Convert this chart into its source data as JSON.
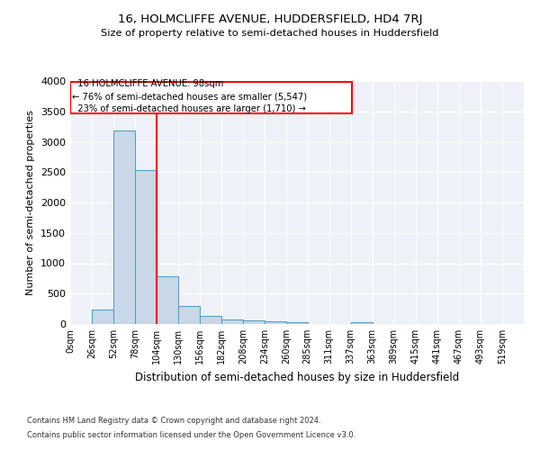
{
  "title": "16, HOLMCLIFFE AVENUE, HUDDERSFIELD, HD4 7RJ",
  "subtitle": "Size of property relative to semi-detached houses in Huddersfield",
  "xlabel": "Distribution of semi-detached houses by size in Huddersfield",
  "ylabel": "Number of semi-detached properties",
  "footer1": "Contains HM Land Registry data © Crown copyright and database right 2024.",
  "footer2": "Contains public sector information licensed under the Open Government Licence v3.0.",
  "property_label": "16 HOLMCLIFFE AVENUE: 98sqm",
  "pct_smaller": 76,
  "n_smaller": 5547,
  "pct_larger": 23,
  "n_larger": 1710,
  "vline_x": 104,
  "bar_color": "#c8d8e8",
  "bar_edge_color": "#5a9ec9",
  "vline_color": "red",
  "annotation_box_color": "red",
  "categories": [
    "0sqm",
    "26sqm",
    "52sqm",
    "78sqm",
    "104sqm",
    "130sqm",
    "156sqm",
    "182sqm",
    "208sqm",
    "234sqm",
    "260sqm",
    "285sqm",
    "311sqm",
    "337sqm",
    "363sqm",
    "389sqm",
    "415sqm",
    "441sqm",
    "467sqm",
    "493sqm",
    "519sqm"
  ],
  "bin_edges": [
    0,
    26,
    52,
    78,
    104,
    130,
    156,
    182,
    208,
    234,
    260,
    285,
    311,
    337,
    363,
    389,
    415,
    441,
    467,
    493,
    519
  ],
  "counts": [
    0,
    240,
    3180,
    2530,
    780,
    290,
    140,
    80,
    55,
    40,
    30,
    0,
    0,
    25,
    0,
    0,
    0,
    0,
    0,
    0
  ],
  "ylim": [
    0,
    4000
  ],
  "yticks": [
    0,
    500,
    1000,
    1500,
    2000,
    2500,
    3000,
    3500,
    4000
  ],
  "bg_color": "#eef2f8",
  "grid_color": "white"
}
